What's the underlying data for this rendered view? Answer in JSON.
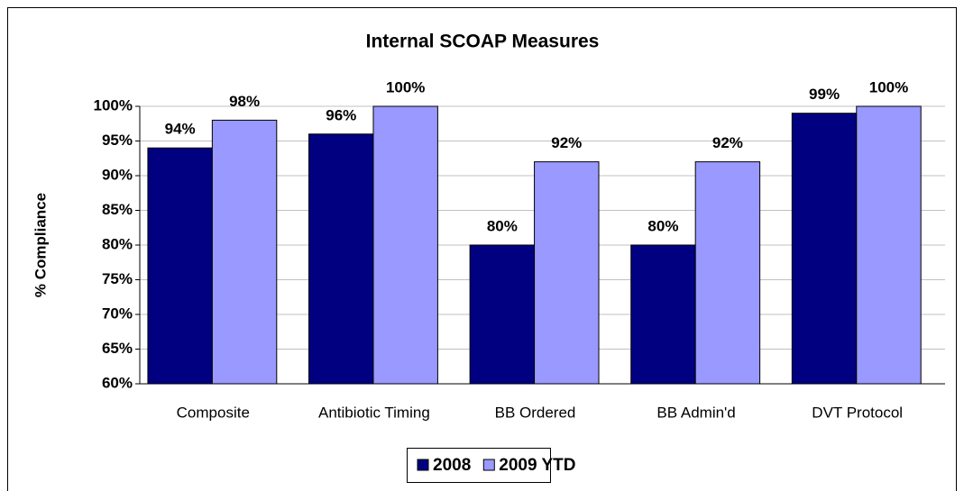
{
  "chart_data": {
    "type": "bar",
    "title": "Internal SCOAP Measures",
    "y_label": "% Compliance",
    "categories": [
      "Composite",
      "Antibiotic Timing",
      "BB Ordered",
      "BB Admin'd",
      "DVT Protocol"
    ],
    "series": [
      {
        "name": "2008",
        "color": "#000080",
        "values": [
          94,
          96,
          80,
          80,
          99
        ],
        "value_labels": [
          "94%",
          "96%",
          "80%",
          "80%",
          "99%"
        ]
      },
      {
        "name": "2009 YTD",
        "color": "#9999ff",
        "values": [
          98,
          100,
          92,
          92,
          100
        ],
        "value_labels": [
          "98%",
          "100%",
          "92%",
          "92%",
          "100%"
        ]
      }
    ],
    "ylim": [
      60,
      100
    ],
    "yticks": [
      {
        "value": 60,
        "label": "60%"
      },
      {
        "value": 65,
        "label": "65%"
      },
      {
        "value": 70,
        "label": "70%"
      },
      {
        "value": 75,
        "label": "75%"
      },
      {
        "value": 80,
        "label": "80%"
      },
      {
        "value": 85,
        "label": "85%"
      },
      {
        "value": 90,
        "label": "90%"
      },
      {
        "value": 95,
        "label": "95%"
      },
      {
        "value": 100,
        "label": "100%"
      }
    ],
    "grid": true,
    "legend": "bottom"
  }
}
